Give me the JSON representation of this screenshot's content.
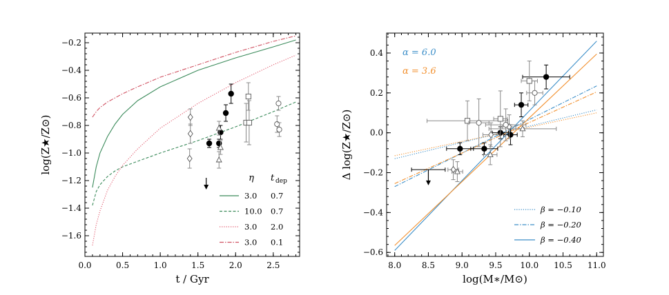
{
  "chart_data": [
    {
      "type": "line",
      "xlabel": "t / Gyr",
      "ylabel": "log(Z★/Z⊙)",
      "xlim": [
        0.0,
        2.85
      ],
      "ylim": [
        -1.75,
        -0.13
      ],
      "xticks": [
        0.0,
        0.5,
        1.0,
        1.5,
        2.0,
        2.5
      ],
      "xtick_labels": [
        "0.0",
        "0.5",
        "1.0",
        "1.5",
        "2.0",
        "2.5"
      ],
      "yticks": [
        -1.6,
        -1.4,
        -1.2,
        -1.0,
        -0.8,
        -0.6,
        -0.4,
        -0.2
      ],
      "ytick_labels": [
        "−1.6",
        "−1.4",
        "−1.2",
        "−1.0",
        "−0.8",
        "−0.6",
        "−0.4",
        "−0.2"
      ],
      "legend_position": "bottom-right",
      "legend_headers": [
        "η",
        "t_dep"
      ],
      "legend_header_eta": "η",
      "legend_header_tdep": "t",
      "legend_header_tdep_sub": "dep",
      "series": [
        {
          "name": "3.0  0.7",
          "eta": "3.0",
          "tdep": "0.7",
          "style": "solid",
          "color": "#3a8a5a",
          "x": [
            0.1,
            0.15,
            0.2,
            0.3,
            0.4,
            0.5,
            0.7,
            1.0,
            1.5,
            2.0,
            2.5,
            2.8
          ],
          "y": [
            -1.25,
            -1.1,
            -1.0,
            -0.88,
            -0.79,
            -0.72,
            -0.62,
            -0.52,
            -0.4,
            -0.31,
            -0.23,
            -0.18
          ]
        },
        {
          "name": "10.0  0.7",
          "eta": "10.0",
          "tdep": "0.7",
          "style": "dashed",
          "color": "#3a8a5a",
          "x": [
            0.1,
            0.15,
            0.2,
            0.3,
            0.4,
            0.5,
            0.7,
            1.0,
            1.5,
            2.0,
            2.5,
            2.8
          ],
          "y": [
            -1.38,
            -1.28,
            -1.23,
            -1.17,
            -1.13,
            -1.1,
            -1.06,
            -1.0,
            -0.91,
            -0.81,
            -0.7,
            -0.63
          ]
        },
        {
          "name": "3.0  2.0",
          "eta": "3.0",
          "tdep": "2.0",
          "style": "dotted",
          "color": "#e0566a",
          "x": [
            0.1,
            0.15,
            0.2,
            0.3,
            0.4,
            0.5,
            0.7,
            1.0,
            1.5,
            2.0,
            2.5,
            2.8
          ],
          "y": [
            -1.67,
            -1.52,
            -1.42,
            -1.27,
            -1.17,
            -1.09,
            -0.97,
            -0.82,
            -0.64,
            -0.49,
            -0.36,
            -0.29
          ]
        },
        {
          "name": "3.0  0.1",
          "eta": "3.0",
          "tdep": "0.1",
          "style": "dashdot",
          "color": "#d05060",
          "x": [
            0.1,
            0.15,
            0.2,
            0.3,
            0.5,
            0.7,
            1.0,
            1.5,
            2.0,
            2.5,
            2.8
          ],
          "y": [
            -0.74,
            -0.7,
            -0.67,
            -0.63,
            -0.57,
            -0.52,
            -0.45,
            -0.36,
            -0.27,
            -0.19,
            -0.15
          ]
        }
      ],
      "points": [
        {
          "marker": "circle-filled",
          "x": 1.65,
          "y": -0.93,
          "yerr": 0.03
        },
        {
          "marker": "circle-filled",
          "x": 1.78,
          "y": -0.93,
          "yerr": 0.03
        },
        {
          "marker": "circle-filled",
          "x": 1.8,
          "y": -0.85,
          "yerr": 0.05
        },
        {
          "marker": "circle-filled",
          "x": 1.87,
          "y": -0.71,
          "yerr": 0.06
        },
        {
          "marker": "circle-filled",
          "x": 1.94,
          "y": -0.57,
          "yerr": 0.07
        },
        {
          "marker": "diamond-open",
          "x": 1.4,
          "y": -0.74,
          "yerr": 0.06
        },
        {
          "marker": "diamond-open",
          "x": 1.4,
          "y": -0.86,
          "yerr": 0.07
        },
        {
          "marker": "diamond-open",
          "x": 1.39,
          "y": -1.04,
          "yerr": 0.07
        },
        {
          "marker": "triangle-open",
          "x": 1.78,
          "y": -0.82,
          "yerr": 0.05
        },
        {
          "marker": "triangle-open",
          "x": 1.8,
          "y": -0.96,
          "yerr": 0.05
        },
        {
          "marker": "triangle-open",
          "x": 1.78,
          "y": -1.05,
          "yerr": 0.06
        },
        {
          "marker": "square-open",
          "x": 2.17,
          "y": -0.59,
          "yerr": 0.1
        },
        {
          "marker": "square-open",
          "x": 2.14,
          "y": -0.78,
          "yerr": 0.14
        },
        {
          "marker": "square-open",
          "x": 2.18,
          "y": -0.78,
          "yerr": 0.16
        },
        {
          "marker": "circle-open",
          "x": 2.57,
          "y": -0.64,
          "yerr": 0.05
        },
        {
          "marker": "circle-open",
          "x": 2.55,
          "y": -0.79,
          "yerr": 0.06
        },
        {
          "marker": "circle-open",
          "x": 2.58,
          "y": -0.83,
          "yerr": 0.05
        }
      ],
      "upper_limit": {
        "x": 1.61,
        "y": -1.18,
        "y_end": -1.26
      }
    },
    {
      "type": "scatter",
      "xlabel": "log(M∗/M⊙)",
      "ylabel": "Δ log(Z★/Z⊙)",
      "xlim": [
        7.88,
        11.1
      ],
      "ylim": [
        -0.62,
        0.5
      ],
      "xticks": [
        8.0,
        8.5,
        9.0,
        9.5,
        10.0,
        10.5,
        11.0
      ],
      "xtick_labels": [
        "8.0",
        "8.5",
        "9.0",
        "9.5",
        "10.0",
        "10.5",
        "11.0"
      ],
      "yticks": [
        -0.6,
        -0.4,
        -0.2,
        0.0,
        0.2,
        0.4
      ],
      "ytick_labels": [
        "−0.6",
        "−0.4",
        "−0.2",
        "0.0",
        "0.2",
        "0.4"
      ],
      "annotations": [
        {
          "text": "α = 6.0",
          "color": "#3b8ec8"
        },
        {
          "text": "α = 3.6",
          "color": "#f28f2c"
        }
      ],
      "legend_position": "bottom-right",
      "legend_entries": [
        {
          "label": "β = −0.10",
          "style": "dotted"
        },
        {
          "label": "β = −0.20",
          "style": "dashdot"
        },
        {
          "label": "β = −0.40",
          "style": "solid"
        }
      ],
      "series": [
        {
          "name": "α=6.0, β=−0.10",
          "color": "#3b8ec8",
          "style": "dotted",
          "x": [
            8.0,
            11.0
          ],
          "y": [
            -0.13,
            0.115
          ]
        },
        {
          "name": "α=3.6, β=−0.10",
          "color": "#f28f2c",
          "style": "dotted",
          "x": [
            8.0,
            11.0
          ],
          "y": [
            -0.115,
            0.1
          ]
        },
        {
          "name": "α=6.0, β=−0.20",
          "color": "#3b8ec8",
          "style": "dashdot",
          "x": [
            8.0,
            11.0
          ],
          "y": [
            -0.27,
            0.235
          ]
        },
        {
          "name": "α=3.6, β=−0.20",
          "color": "#f28f2c",
          "style": "dashdot",
          "x": [
            8.0,
            11.0
          ],
          "y": [
            -0.255,
            0.205
          ]
        },
        {
          "name": "α=6.0, β=−0.40",
          "color": "#3b8ec8",
          "style": "solid",
          "x": [
            8.0,
            11.0
          ],
          "y": [
            -0.59,
            0.46
          ]
        },
        {
          "name": "α=3.6, β=−0.40",
          "color": "#f28f2c",
          "style": "solid",
          "x": [
            8.0,
            11.0
          ],
          "y": [
            -0.565,
            0.395
          ]
        }
      ],
      "points": [
        {
          "marker": "circle-filled",
          "x": 8.97,
          "y": -0.08,
          "xerr": 0.2,
          "yerr": 0.03
        },
        {
          "marker": "circle-filled",
          "x": 9.33,
          "y": -0.08,
          "xerr": 0.2,
          "yerr": 0.03
        },
        {
          "marker": "circle-filled",
          "x": 9.57,
          "y": 0.0,
          "xerr": 0.12,
          "yerr": 0.03
        },
        {
          "marker": "circle-filled",
          "x": 9.72,
          "y": -0.01,
          "xerr": 0.1,
          "yerr": 0.05
        },
        {
          "marker": "circle-filled",
          "x": 9.88,
          "y": 0.14,
          "xerr": 0.1,
          "yerr": 0.06
        },
        {
          "marker": "circle-filled",
          "x": 10.25,
          "y": 0.28,
          "xerr": 0.35,
          "yerr": 0.06
        },
        {
          "marker": "diamond-open",
          "x": 9.7,
          "y": 0.03,
          "xerr": 0.1,
          "yerr": 0.06
        },
        {
          "marker": "diamond-open",
          "x": 9.43,
          "y": -0.01,
          "xerr": 0.12,
          "yerr": 0.06
        },
        {
          "marker": "diamond-open",
          "x": 8.87,
          "y": -0.185,
          "xerr": 0.08,
          "yerr": 0.05
        },
        {
          "marker": "triangle-open",
          "x": 9.42,
          "y": -0.11,
          "xerr": 0.1,
          "yerr": 0.05
        },
        {
          "marker": "triangle-open",
          "x": 8.93,
          "y": -0.195,
          "xerr": 0.08,
          "yerr": 0.05
        },
        {
          "marker": "triangle-open",
          "x": 9.9,
          "y": 0.02,
          "xerr": 0.5,
          "yerr": 0.04
        },
        {
          "marker": "square-open",
          "x": 9.08,
          "y": 0.06,
          "xerr": 0.6,
          "yerr": 0.1
        },
        {
          "marker": "square-open",
          "x": 9.57,
          "y": 0.07,
          "xerr": 0.1,
          "yerr": 0.14
        },
        {
          "marker": "square-open",
          "x": 10.0,
          "y": 0.26,
          "xerr": 0.12,
          "yerr": 0.1
        },
        {
          "marker": "circle-open",
          "x": 9.25,
          "y": 0.05,
          "xerr": 0.15,
          "yerr": 0.12
        },
        {
          "marker": "circle-open",
          "x": 9.65,
          "y": 0.04,
          "xerr": 0.3,
          "yerr": 0.08
        },
        {
          "marker": "circle-open",
          "x": 10.08,
          "y": 0.2,
          "xerr": 0.12,
          "yerr": 0.06
        }
      ],
      "upper_limit": {
        "x": 8.5,
        "xerr_low": 0.25,
        "xerr_high": 0.25,
        "y": -0.185,
        "y_end": -0.26
      }
    }
  ]
}
